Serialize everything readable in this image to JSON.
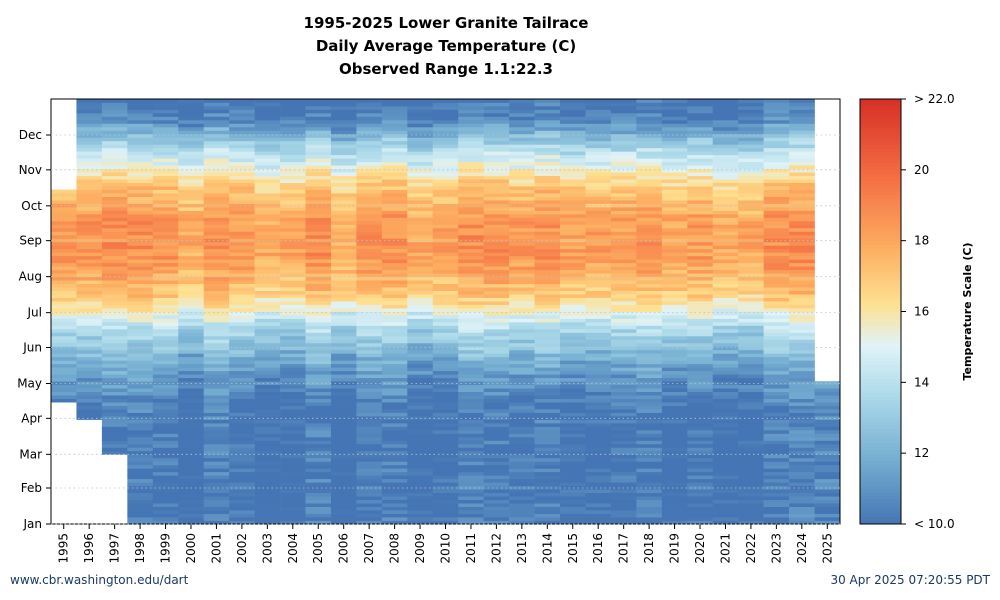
{
  "title_lines": [
    "1995-2025 Lower Granite Tailrace",
    "Daily Average Temperature (C)",
    "Observed Range 1.1:22.3"
  ],
  "footer": {
    "left": "www.cbr.washington.edu/dart",
    "right": "30 Apr 2025 07:20:55 PDT"
  },
  "chart_data": {
    "type": "heatmap",
    "title": "1995-2025 Lower Granite Tailrace Daily Average Temperature (C) Observed Range 1.1:22.3",
    "x": [
      "1995",
      "1996",
      "1997",
      "1998",
      "1999",
      "2000",
      "2001",
      "2002",
      "2003",
      "2004",
      "2005",
      "2006",
      "2007",
      "2008",
      "2009",
      "2010",
      "2011",
      "2012",
      "2013",
      "2014",
      "2015",
      "2016",
      "2017",
      "2018",
      "2019",
      "2020",
      "2021",
      "2022",
      "2023",
      "2024",
      "2025"
    ],
    "y": [
      "Jan",
      "Feb",
      "Mar",
      "Apr",
      "May",
      "Jun",
      "Jul",
      "Aug",
      "Sep",
      "Oct",
      "Nov",
      "Dec"
    ],
    "value_range": [
      10.0,
      22.0
    ],
    "colorbar": {
      "label": "Temperature Scale (C)",
      "ticks": [
        "< 10.0",
        "12",
        "14",
        "16",
        "18",
        "20",
        "> 22.0"
      ],
      "tick_values": [
        10,
        12,
        14,
        16,
        18,
        20,
        22
      ]
    },
    "grid": true,
    "legend": "colorbar-right",
    "monthly_estimates": {
      "Jan": 10.0,
      "Feb": 10.0,
      "Mar": 10.0,
      "Apr": 10.2,
      "May": 11.5,
      "Jun": 13.5,
      "Jul": 16.8,
      "Aug": 18.3,
      "Sep": 18.3,
      "Oct": 17.0,
      "Nov": 14.0,
      "Dec": 10.3
    },
    "coverage": [
      {
        "year": "1995",
        "from": "Apr",
        "to": "Oct",
        "note": "starts ~Apr 15, ends ~Oct 10"
      },
      {
        "year": "1996",
        "from": "Apr",
        "to": "Dec"
      },
      {
        "year": "1997",
        "from": "Mar",
        "to": "Dec"
      },
      {
        "year": "2025",
        "from": "Jan",
        "to": "May",
        "note": "through ~Apr 30"
      }
    ],
    "colors": {
      "cold": "#4473b8",
      "cool": "#8cbfdc",
      "neutral": "#eef5ec",
      "warm": "#fcc57a",
      "hot": "#f48a45",
      "hottest": "#d33a2c"
    }
  }
}
